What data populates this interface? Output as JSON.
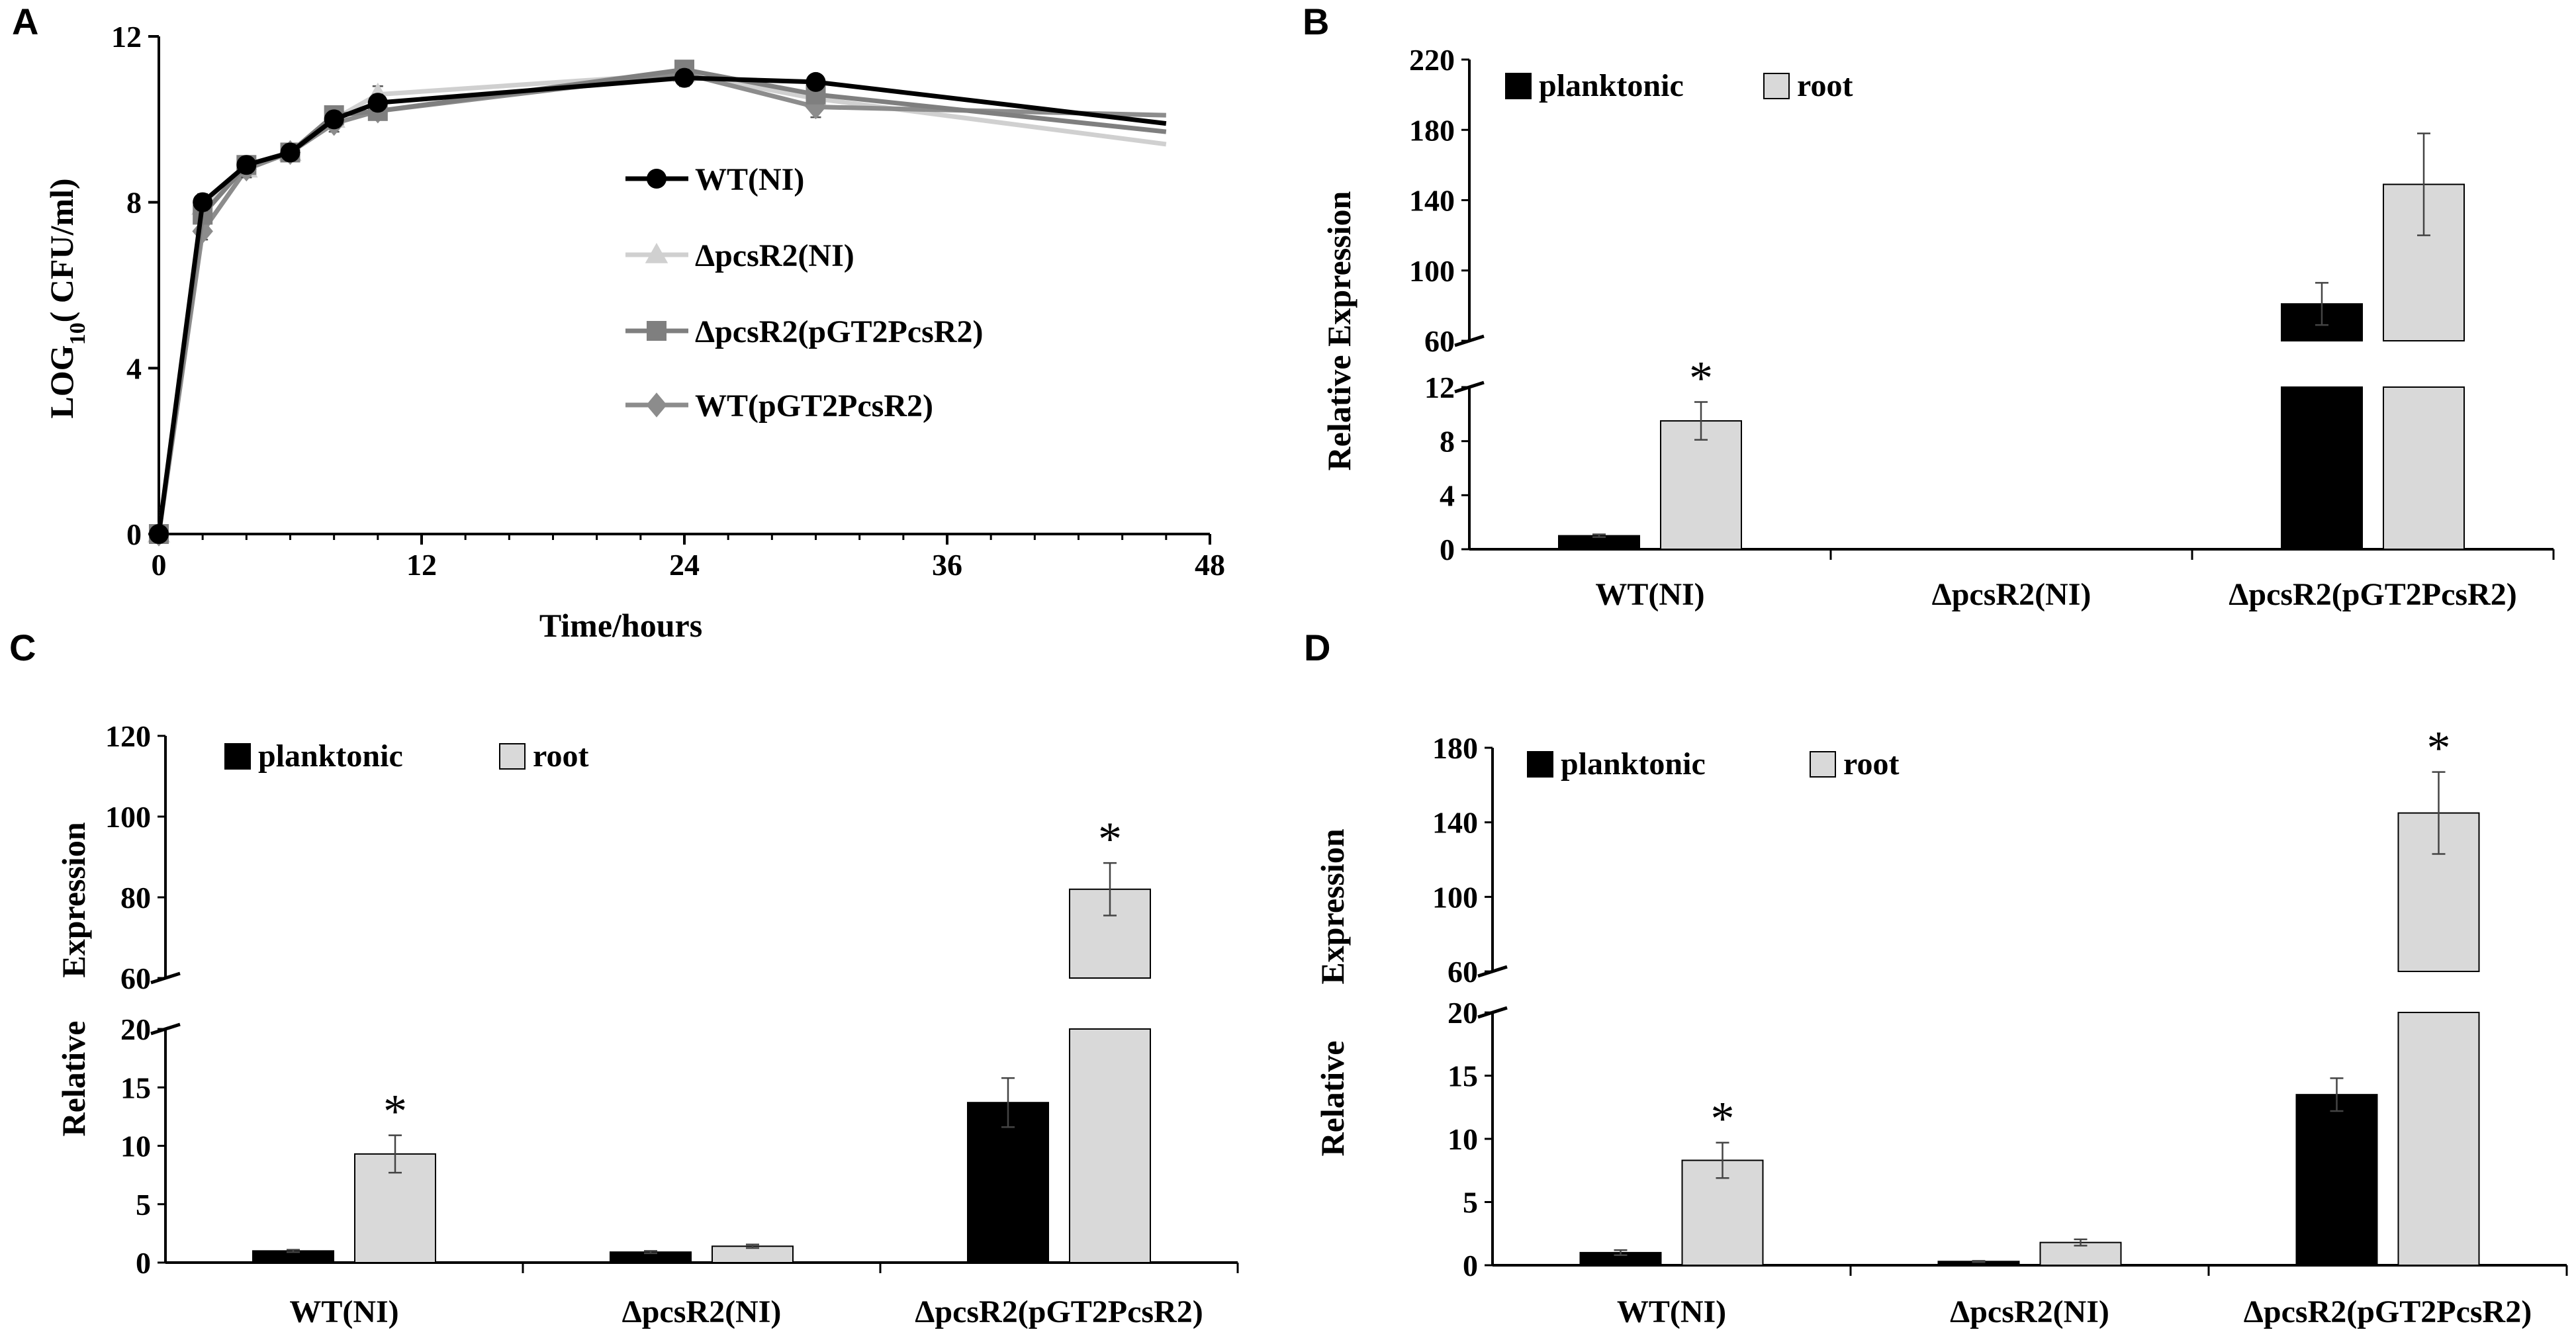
{
  "figure": {
    "panels": [
      "A",
      "B",
      "C",
      "D"
    ]
  },
  "chart_data": [
    {
      "id": "A",
      "type": "line",
      "title": "",
      "xlabel": "Time/hours",
      "ylabel": "LOG10( CFU/ml)",
      "ylabel_parts": {
        "base": "LOG",
        "sub": "10",
        "rest": "( CFU/ml)"
      },
      "xlim": [
        0,
        48
      ],
      "ylim": [
        0,
        12
      ],
      "xticks": [
        "0",
        "12",
        "24",
        "36",
        "48"
      ],
      "yticks": [
        "0",
        "4",
        "8",
        "12"
      ],
      "legend_position": "center",
      "series": [
        {
          "name": "WT(NI)",
          "color": "#000000",
          "marker": "circle",
          "x": [
            0,
            2,
            4,
            6,
            8,
            10,
            24,
            30,
            46
          ],
          "y": [
            0,
            8.0,
            8.9,
            9.2,
            10.0,
            10.4,
            11.0,
            10.9,
            9.9
          ],
          "err": [
            0,
            0.2,
            0.2,
            0.2,
            0.2,
            0.2,
            0.2,
            0.15,
            0
          ]
        },
        {
          "name": "ΔpcsR2(NI)",
          "color": "#d0d0d0",
          "marker": "triangle",
          "x": [
            0,
            2,
            4,
            6,
            8,
            10,
            24,
            30,
            46
          ],
          "y": [
            0,
            7.9,
            8.8,
            9.2,
            10.0,
            10.6,
            11.1,
            10.5,
            9.4
          ],
          "err": [
            0,
            0.2,
            0.2,
            0.2,
            0.2,
            0.2,
            0.2,
            0.2,
            0
          ]
        },
        {
          "name": "ΔpcsR2(pGT2PcsR2)",
          "color": "#7f7f7f",
          "marker": "square",
          "x": [
            0,
            2,
            4,
            6,
            8,
            10,
            24,
            30,
            46
          ],
          "y": [
            0,
            7.7,
            8.9,
            9.2,
            10.1,
            10.2,
            11.2,
            10.6,
            9.7
          ],
          "err": [
            0,
            0.2,
            0.2,
            0.2,
            0.2,
            0.2,
            0.2,
            0.2,
            0
          ]
        },
        {
          "name": "WT(pGT2PcsR2)",
          "color": "#8c8c8c",
          "marker": "diamond",
          "x": [
            0,
            2,
            4,
            6,
            8,
            10,
            24,
            30,
            46
          ],
          "y": [
            0,
            7.3,
            8.8,
            9.2,
            9.9,
            10.2,
            11.1,
            10.3,
            10.1
          ],
          "err": [
            0,
            0.2,
            0.2,
            0.2,
            0.2,
            0.2,
            0.2,
            0.25,
            0
          ]
        }
      ]
    },
    {
      "id": "B",
      "type": "bar",
      "title": "",
      "xlabel": "",
      "ylabel": "Relative Expression",
      "broken_axis": true,
      "lower_ylim": [
        0,
        12
      ],
      "lower_ticks": [
        "0",
        "4",
        "8",
        "12"
      ],
      "upper_ylim": [
        60,
        220
      ],
      "upper_ticks": [
        "60",
        "100",
        "140",
        "180",
        "220"
      ],
      "legend_position": "top-left",
      "categories": [
        "WT(NI)",
        "ΔpcsR2(NI)",
        "ΔpcsR2(pGT2PcsR2)"
      ],
      "series": [
        {
          "name": "planktonic",
          "color": "#000000",
          "values": [
            1.0,
            0,
            81
          ],
          "err": [
            0.1,
            0,
            12
          ]
        },
        {
          "name": "root",
          "color": "#d9d9d9",
          "values": [
            9.5,
            0,
            149
          ],
          "err": [
            1.4,
            0,
            29
          ]
        }
      ],
      "significance": [
        "*",
        "",
        ""
      ]
    },
    {
      "id": "C",
      "type": "bar",
      "title": "",
      "xlabel": "",
      "ylabel": "Relative Expression",
      "ylabel_parts": {
        "top": "Expression",
        "bottom": "Relative"
      },
      "broken_axis": true,
      "lower_ylim": [
        0,
        20
      ],
      "lower_ticks": [
        "0",
        "5",
        "10",
        "15",
        "20"
      ],
      "upper_ylim": [
        60,
        120
      ],
      "upper_ticks": [
        "60",
        "80",
        "100",
        "120"
      ],
      "legend_position": "top-left",
      "categories": [
        "WT(NI)",
        "ΔpcsR2(NI)",
        "ΔpcsR2(pGT2PcsR2)"
      ],
      "series": [
        {
          "name": "planktonic",
          "color": "#000000",
          "values": [
            1.0,
            0.9,
            13.7
          ],
          "err": [
            0.1,
            0.1,
            2.1
          ]
        },
        {
          "name": "root",
          "color": "#d9d9d9",
          "values": [
            9.3,
            1.4,
            82
          ],
          "err": [
            1.6,
            0.15,
            6.5
          ]
        }
      ],
      "significance": [
        "*",
        "",
        "*"
      ]
    },
    {
      "id": "D",
      "type": "bar",
      "title": "",
      "xlabel": "",
      "ylabel": "Relative Expression",
      "ylabel_parts": {
        "top": "Expression",
        "bottom": "Relative"
      },
      "broken_axis": true,
      "lower_ylim": [
        0,
        20
      ],
      "lower_ticks": [
        "0",
        "5",
        "10",
        "15",
        "20"
      ],
      "upper_ylim": [
        60,
        180
      ],
      "upper_ticks": [
        "60",
        "100",
        "140",
        "180"
      ],
      "legend_position": "top-left",
      "categories": [
        "WT(NI)",
        "ΔpcsR2(NI)",
        "ΔpcsR2(pGT2PcsR2)"
      ],
      "series": [
        {
          "name": "planktonic",
          "color": "#000000",
          "values": [
            1.0,
            0.3,
            13.5
          ],
          "err": [
            0.2,
            0.05,
            1.3
          ]
        },
        {
          "name": "root",
          "color": "#d9d9d9",
          "values": [
            8.3,
            1.8,
            145
          ],
          "err": [
            1.4,
            0.25,
            22
          ]
        }
      ],
      "significance": [
        "*",
        "",
        "*"
      ]
    }
  ]
}
